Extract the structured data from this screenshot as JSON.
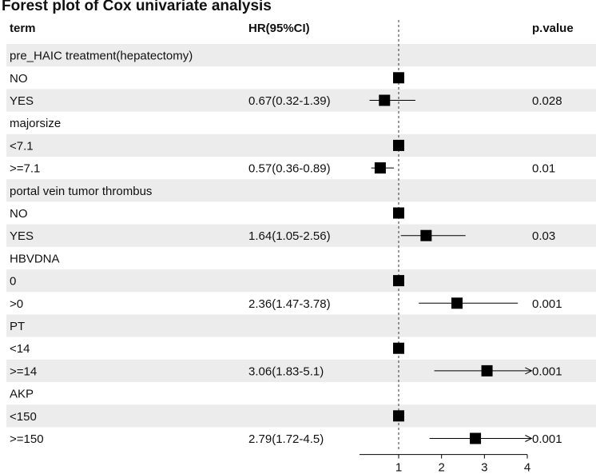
{
  "title": "Forest plot of Cox univariate analysis",
  "headers": {
    "term": "term",
    "hr": "HR(95%CI)",
    "p": "p.value"
  },
  "chart_data": {
    "type": "forest",
    "title": "Forest plot of Cox univariate analysis",
    "columns": [
      "term",
      "HR(95%CI)",
      "p.value"
    ],
    "reference_line": 1,
    "x_ticks": [
      1,
      2,
      3,
      4
    ],
    "xlim": [
      0.3,
      4.1
    ],
    "rows": [
      {
        "term": "pre_HAIC treatment(hepatectomy)",
        "kind": "group"
      },
      {
        "term": "NO",
        "kind": "ref",
        "hr": 1
      },
      {
        "term": "YES",
        "kind": "est",
        "hr": 0.67,
        "lo": 0.32,
        "hi": 1.39,
        "hr_text": "0.67(0.32-1.39)",
        "p": "0.028"
      },
      {
        "term": "majorsize",
        "kind": "group"
      },
      {
        "term": "<7.1",
        "kind": "ref",
        "hr": 1
      },
      {
        "term": ">=7.1",
        "kind": "est",
        "hr": 0.57,
        "lo": 0.36,
        "hi": 0.89,
        "hr_text": "0.57(0.36-0.89)",
        "p": "0.01"
      },
      {
        "term": "portal vein tumor thrombus",
        "kind": "group"
      },
      {
        "term": "NO",
        "kind": "ref",
        "hr": 1
      },
      {
        "term": "YES",
        "kind": "est",
        "hr": 1.64,
        "lo": 1.05,
        "hi": 2.56,
        "hr_text": "1.64(1.05-2.56)",
        "p": "0.03"
      },
      {
        "term": "HBVDNA",
        "kind": "group"
      },
      {
        "term": "0",
        "kind": "ref",
        "hr": 1
      },
      {
        "term": ">0",
        "kind": "est",
        "hr": 2.36,
        "lo": 1.47,
        "hi": 3.78,
        "hr_text": "2.36(1.47-3.78)",
        "p": "0.001"
      },
      {
        "term": "PT",
        "kind": "group"
      },
      {
        "term": "<14",
        "kind": "ref",
        "hr": 1
      },
      {
        "term": ">=14",
        "kind": "est",
        "hr": 3.06,
        "lo": 1.83,
        "hi": 5.1,
        "hr_text": "3.06(1.83-5.1)",
        "p": "0.001",
        "arrow": true
      },
      {
        "term": "AKP",
        "kind": "group"
      },
      {
        "term": "<150",
        "kind": "ref",
        "hr": 1
      },
      {
        "term": ">=150",
        "kind": "est",
        "hr": 2.79,
        "lo": 1.72,
        "hi": 4.5,
        "hr_text": "2.79(1.72-4.5)",
        "p": "0.001",
        "arrow": true
      }
    ]
  }
}
